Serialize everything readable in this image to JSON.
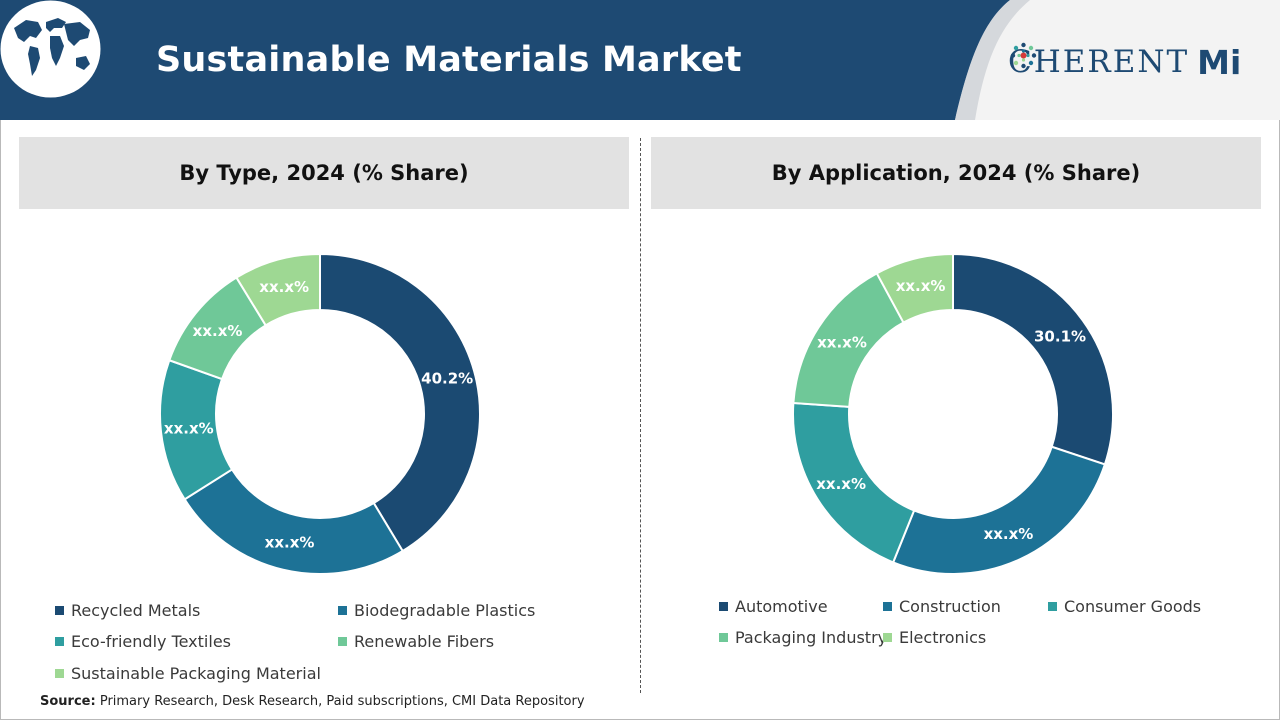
{
  "header": {
    "title": "Sustainable Materials Market",
    "logo_text_left": "C",
    "logo_text_right": "HERENT",
    "logo_text_mi": "Mi",
    "colors": {
      "band": "#1e4a73",
      "logo": "#1e4a73"
    }
  },
  "chart_data": [
    {
      "type": "pie",
      "title": "By Type, 2024 (% Share)",
      "categories": [
        "Recycled Metals",
        "Biodegradable Plastics",
        "Eco-friendly Textiles",
        "Renewable Fibers",
        "Sustainable Packaging Material"
      ],
      "values": [
        40.2,
        24.0,
        14.0,
        10.5,
        8.5
      ],
      "labels": [
        "40.2%",
        "xx.x%",
        "xx.x%",
        "xx.x%",
        "xx.x%"
      ],
      "colors": [
        "#1b4a72",
        "#1d7296",
        "#2f9ea0",
        "#6fc898",
        "#9ed893"
      ],
      "donut": true,
      "legend_position": "bottom"
    },
    {
      "type": "pie",
      "title": "By Application, 2024 (% Share)",
      "categories": [
        "Automotive",
        "Construction",
        "Consumer Goods",
        "Packaging Industry",
        "Electronics"
      ],
      "values": [
        30.1,
        26.0,
        20.0,
        16.0,
        7.9
      ],
      "labels": [
        "30.1%",
        "xx.x%",
        "xx.x%",
        "xx.x%",
        "xx.x%"
      ],
      "colors": [
        "#1b4a72",
        "#1d7296",
        "#2f9ea0",
        "#6fc898",
        "#9ed893"
      ],
      "donut": true,
      "legend_position": "bottom"
    }
  ],
  "source": {
    "label": "Source:",
    "text": "Primary Research, Desk Research, Paid subscriptions, CMI Data Repository"
  }
}
